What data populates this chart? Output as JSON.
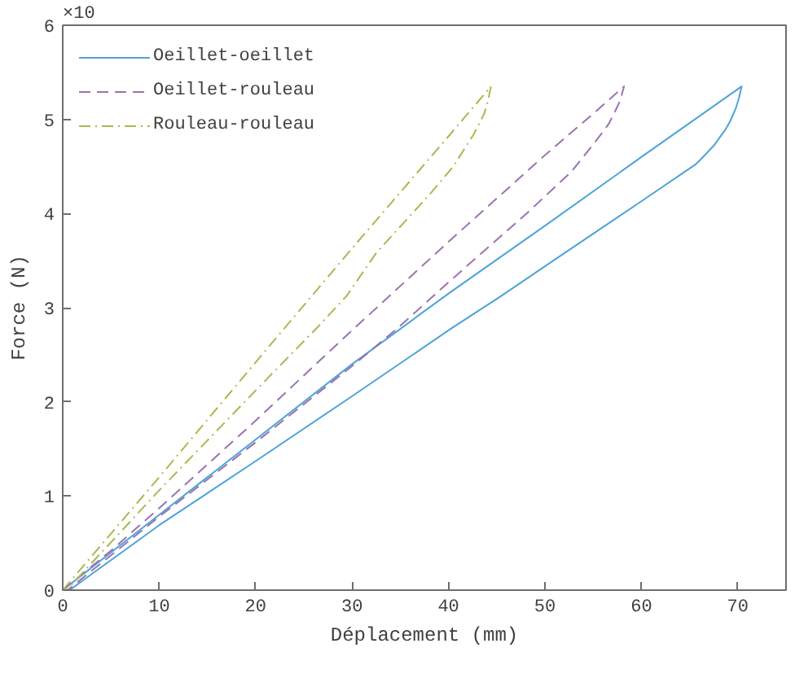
{
  "chart_data": {
    "type": "line",
    "xlabel": "Déplacement (mm)",
    "ylabel": "Force (N)",
    "annotations": [
      "×10"
    ],
    "xlim": [
      0,
      75
    ],
    "ylim": [
      0,
      6
    ],
    "xticks": [
      0,
      10,
      20,
      30,
      40,
      50,
      60,
      70
    ],
    "yticks": [
      0,
      1,
      2,
      3,
      4,
      5,
      6
    ],
    "legend": "top left",
    "series": [
      {
        "name": "Oeillet-oeillet",
        "color": "#4da3d9",
        "line_style": "solid",
        "x": [
          0,
          10,
          20,
          30,
          40,
          50,
          60,
          70.4,
          70.1,
          69.8,
          69.2,
          68.7,
          67.5,
          66.2,
          65.6,
          60,
          50,
          45.4,
          40.3,
          30,
          20,
          10,
          0.7
        ],
        "values": [
          0,
          0.8,
          1.6,
          2.4,
          3.15,
          3.87,
          4.6,
          5.35,
          5.22,
          5.12,
          4.98,
          4.89,
          4.72,
          4.58,
          4.52,
          4.13,
          3.44,
          3.12,
          2.78,
          2.06,
          1.37,
          0.69,
          0
        ]
      },
      {
        "name": "Oeillet-rouleau",
        "color": "#9b72b0",
        "line_style": "dashed",
        "x": [
          0,
          5,
          10,
          20,
          30,
          40,
          50,
          55,
          58.2,
          57.8,
          57.2,
          56.6,
          55.8,
          54.9,
          52.7,
          48.2,
          40,
          34.7,
          30,
          20,
          10,
          0.5
        ],
        "values": [
          0,
          0.42,
          0.87,
          1.8,
          2.76,
          3.7,
          4.62,
          5.06,
          5.35,
          5.2,
          5.07,
          4.95,
          4.84,
          4.72,
          4.44,
          4.01,
          3.27,
          2.78,
          2.38,
          1.57,
          0.78,
          0
        ]
      },
      {
        "name": "Rouleau-rouleau",
        "color": "#a9b94f",
        "line_style": "dashdot",
        "x": [
          0,
          5,
          10,
          20,
          30,
          40,
          44.4,
          44.1,
          43.7,
          42.6,
          40.5,
          38.1,
          32.5,
          29.4,
          26.3,
          20,
          10,
          0.4
        ],
        "values": [
          0,
          0.6,
          1.2,
          2.42,
          3.63,
          4.82,
          5.35,
          5.2,
          5.06,
          4.84,
          4.5,
          4.21,
          3.58,
          3.12,
          2.78,
          2.12,
          1.06,
          0
        ]
      }
    ]
  }
}
